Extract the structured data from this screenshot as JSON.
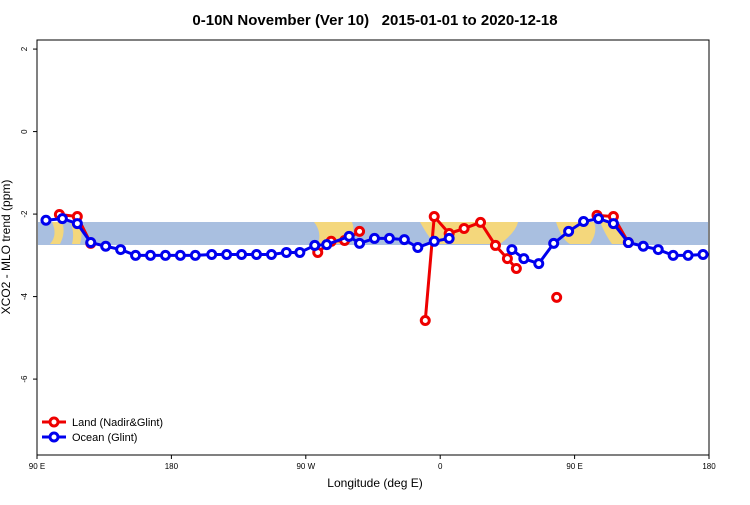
{
  "chart_data": {
    "type": "line",
    "title": "0-10N November (Ver 10)   2015-01-01 to 2020-12-18",
    "x_label": "Longitude (deg E)",
    "y_label": "XCO2 - MLO trend (ppm)",
    "xlim": [
      90,
      540
    ],
    "ylim": [
      -7.84,
      2.22
    ],
    "xticks": [
      {
        "value": 90,
        "label": "90 E"
      },
      {
        "value": 180,
        "label": "180"
      },
      {
        "value": 270,
        "label": "90 W"
      },
      {
        "value": 360,
        "label": "0"
      },
      {
        "value": 450,
        "label": "90 E"
      },
      {
        "value": 540,
        "label": "180"
      }
    ],
    "yticks": [
      -6,
      -4,
      -2,
      0,
      2
    ],
    "legend": "bottom-left",
    "series": [
      {
        "name": "Land (Nadir&Glint)",
        "color": "#ee0000",
        "x": [
          105,
          117,
          126,
          200,
          278,
          287,
          296,
          306,
          330,
          350,
          356,
          366,
          376,
          387,
          397,
          405,
          411,
          425,
          438,
          450,
          465,
          476,
          486
        ],
        "values": [
          -2.01,
          -2.06,
          -2.71,
          null,
          -2.93,
          -2.66,
          -2.64,
          -2.42,
          null,
          -4.58,
          -2.06,
          -2.47,
          -2.35,
          -2.2,
          -2.76,
          -3.08,
          -3.32,
          null,
          -4.02,
          null,
          -2.03,
          -2.06,
          -2.69
        ]
      },
      {
        "name": "Ocean (Glint)",
        "color": "#0000ee",
        "x": [
          96,
          107,
          117,
          126,
          136,
          146,
          156,
          166,
          176,
          186,
          196,
          207,
          217,
          227,
          237,
          247,
          257,
          266,
          276,
          284,
          299,
          306,
          316,
          326,
          336,
          345,
          356,
          366,
          387,
          408,
          416,
          426,
          436,
          446,
          456,
          466,
          476,
          486,
          496,
          506,
          516,
          526,
          536
        ],
        "values": [
          -2.15,
          -2.11,
          -2.23,
          -2.69,
          -2.78,
          -2.86,
          -3.0,
          -3.0,
          -3.0,
          -3.0,
          -3.0,
          -2.98,
          -2.98,
          -2.98,
          -2.98,
          -2.98,
          -2.93,
          -2.93,
          -2.76,
          -2.74,
          -2.54,
          -2.71,
          -2.59,
          -2.59,
          -2.62,
          -2.81,
          -2.66,
          -2.59,
          null,
          -2.86,
          -3.08,
          -3.2,
          -2.71,
          -2.42,
          -2.18,
          -2.11,
          -2.23,
          -2.69,
          -2.78,
          -2.86,
          -3.0,
          -3.0,
          -2.98
        ]
      }
    ]
  }
}
